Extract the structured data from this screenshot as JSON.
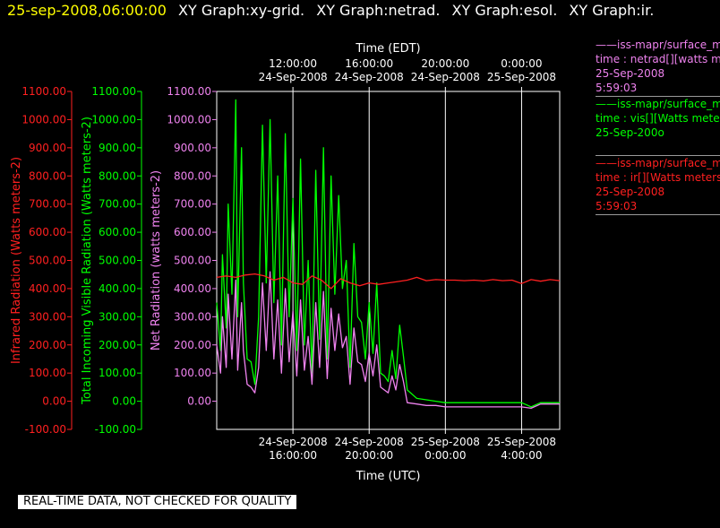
{
  "header": {
    "timestamp": "25-sep-2008,06:00:00",
    "graph_titles": [
      "XY Graph:xy-grid.",
      "XY Graph:netrad.",
      "XY Graph:esol.",
      "XY Graph:ir."
    ]
  },
  "colors": {
    "background": "#000000",
    "axis": "#ffffff",
    "infrared": "#ff2020",
    "visible": "#00ff00",
    "net": "#ee82ee",
    "grid": "#ffffff"
  },
  "legend": [
    {
      "color": "#ee82ee",
      "lines": [
        "——iss-mapr/surface_m",
        "time : netrad[][watts m",
        "25-Sep-2008",
        "5:59:03"
      ]
    },
    {
      "color": "#00ff00",
      "lines": [
        "——iss-mapr/surface_m",
        "time : vis[][Watts mete",
        "25-Sep-200o",
        ""
      ]
    },
    {
      "color": "#ff2020",
      "lines": [
        "——iss-mapr/surface_m",
        "time : ir[][Watts meters",
        "25-Sep-2008",
        "5:59:03"
      ]
    }
  ],
  "notice": "REAL-TIME DATA, NOT CHECKED FOR QUALITY",
  "chart_data": {
    "type": "line",
    "top_axis_title": "Time (EDT)",
    "bottom_axis_title": "Time (UTC)",
    "top_ticks": [
      {
        "value": 12,
        "line1": "12:00:00",
        "line2": "24-Sep-2008"
      },
      {
        "value": 16,
        "line1": "16:00:00",
        "line2": "24-Sep-2008"
      },
      {
        "value": 20,
        "line1": "20:00:00",
        "line2": "24-Sep-2008"
      },
      {
        "value": 24,
        "line1": "0:00:00",
        "line2": "25-Sep-2008"
      }
    ],
    "bottom_ticks": [
      {
        "value": 12,
        "line1": "24-Sep-2008",
        "line2": "16:00:00"
      },
      {
        "value": 16,
        "line1": "24-Sep-2008",
        "line2": "20:00:00"
      },
      {
        "value": 20,
        "line1": "25-Sep-2008",
        "line2": "0:00:00"
      },
      {
        "value": 24,
        "line1": "25-Sep-2008",
        "line2": "4:00:00"
      }
    ],
    "xlim": [
      8,
      26
    ],
    "ylim": [
      -100,
      1100
    ],
    "y_ticks": [
      -100,
      0,
      100,
      200,
      300,
      400,
      500,
      600,
      700,
      800,
      900,
      1000,
      1100
    ],
    "y_tick_labels": [
      "-100.00",
      "0.00",
      "100.00",
      "200.00",
      "300.00",
      "400.00",
      "500.00",
      "600.00",
      "700.00",
      "800.00",
      "900.00",
      "1000.00",
      "1100.00"
    ],
    "axes": [
      {
        "label": "Infrared Radiation (Watts meters-2)",
        "color": "#ff2020",
        "ticks_from": -100
      },
      {
        "label": "Total Incoming Visible Radiation (Watts meters-2)",
        "color": "#00ff00",
        "ticks_from": -100
      },
      {
        "label": "Net Radiation (watts meters-2)",
        "color": "#ee82ee",
        "ticks_from": 0
      }
    ],
    "grid": true,
    "series": [
      {
        "color": "#00ff00",
        "x": [
          8.0,
          8.2,
          8.3,
          8.5,
          8.6,
          8.8,
          9.0,
          9.1,
          9.3,
          9.4,
          9.6,
          9.8,
          10.0,
          10.2,
          10.4,
          10.6,
          10.8,
          11.0,
          11.2,
          11.4,
          11.6,
          11.8,
          12.0,
          12.2,
          12.4,
          12.6,
          12.8,
          13.0,
          13.2,
          13.4,
          13.6,
          13.8,
          14.0,
          14.2,
          14.4,
          14.6,
          14.8,
          15.0,
          15.2,
          15.4,
          15.6,
          15.8,
          16.0,
          16.2,
          16.4,
          16.6,
          16.8,
          17.0,
          17.2,
          17.4,
          17.6,
          17.8,
          18.0,
          18.5,
          19.0,
          19.5,
          20.0,
          21.0,
          22.0,
          23.0,
          23.5,
          24.0,
          24.5,
          25.0,
          25.5,
          26.0
        ],
        "values": [
          350,
          180,
          520,
          260,
          700,
          380,
          1070,
          300,
          900,
          420,
          150,
          140,
          60,
          300,
          980,
          420,
          1000,
          350,
          800,
          200,
          950,
          300,
          720,
          180,
          860,
          200,
          500,
          100,
          820,
          220,
          900,
          150,
          800,
          380,
          730,
          400,
          500,
          120,
          560,
          300,
          280,
          150,
          350,
          170,
          420,
          100,
          90,
          70,
          180,
          80,
          270,
          160,
          40,
          10,
          5,
          0,
          -5,
          -5,
          -5,
          -5,
          -5,
          -5,
          -20,
          -5,
          -5,
          -5
        ]
      },
      {
        "color": "#ee82ee",
        "x": [
          8.0,
          8.2,
          8.3,
          8.5,
          8.6,
          8.8,
          9.0,
          9.1,
          9.3,
          9.4,
          9.6,
          9.8,
          10.0,
          10.2,
          10.4,
          10.6,
          10.8,
          11.0,
          11.2,
          11.4,
          11.6,
          11.8,
          12.0,
          12.2,
          12.4,
          12.6,
          12.8,
          13.0,
          13.2,
          13.4,
          13.6,
          13.8,
          14.0,
          14.2,
          14.4,
          14.6,
          14.8,
          15.0,
          15.2,
          15.4,
          15.6,
          15.8,
          16.0,
          16.2,
          16.4,
          16.6,
          16.8,
          17.0,
          17.2,
          17.4,
          17.6,
          17.8,
          18.0,
          18.5,
          19.0,
          19.5,
          20.0,
          21.0,
          22.0,
          23.0,
          23.5,
          24.0,
          24.5,
          25.0,
          25.5,
          26.0
        ],
        "values": [
          200,
          100,
          300,
          120,
          380,
          150,
          430,
          110,
          350,
          180,
          60,
          50,
          30,
          120,
          420,
          180,
          460,
          150,
          360,
          100,
          400,
          140,
          320,
          90,
          360,
          110,
          230,
          60,
          350,
          120,
          390,
          80,
          330,
          180,
          310,
          190,
          230,
          60,
          260,
          140,
          130,
          70,
          170,
          90,
          200,
          50,
          40,
          30,
          90,
          40,
          130,
          70,
          -5,
          -10,
          -15,
          -15,
          -20,
          -20,
          -20,
          -20,
          -20,
          -20,
          -25,
          -10,
          -10,
          -10
        ]
      },
      {
        "color": "#ff2020",
        "x": [
          8.0,
          8.5,
          9.0,
          9.5,
          10.0,
          10.5,
          11.0,
          11.5,
          12.0,
          12.5,
          13.0,
          13.5,
          14.0,
          14.5,
          15.0,
          15.5,
          16.0,
          16.5,
          17.0,
          17.5,
          18.0,
          18.5,
          19.0,
          19.5,
          20.0,
          20.5,
          21.0,
          21.5,
          22.0,
          22.5,
          23.0,
          23.5,
          24.0,
          24.5,
          25.0,
          25.5,
          26.0
        ],
        "values": [
          440,
          445,
          440,
          448,
          452,
          445,
          430,
          440,
          420,
          415,
          445,
          430,
          400,
          435,
          420,
          410,
          420,
          415,
          420,
          425,
          430,
          440,
          428,
          432,
          430,
          430,
          428,
          430,
          427,
          432,
          428,
          430,
          418,
          432,
          426,
          432,
          428
        ]
      }
    ]
  }
}
